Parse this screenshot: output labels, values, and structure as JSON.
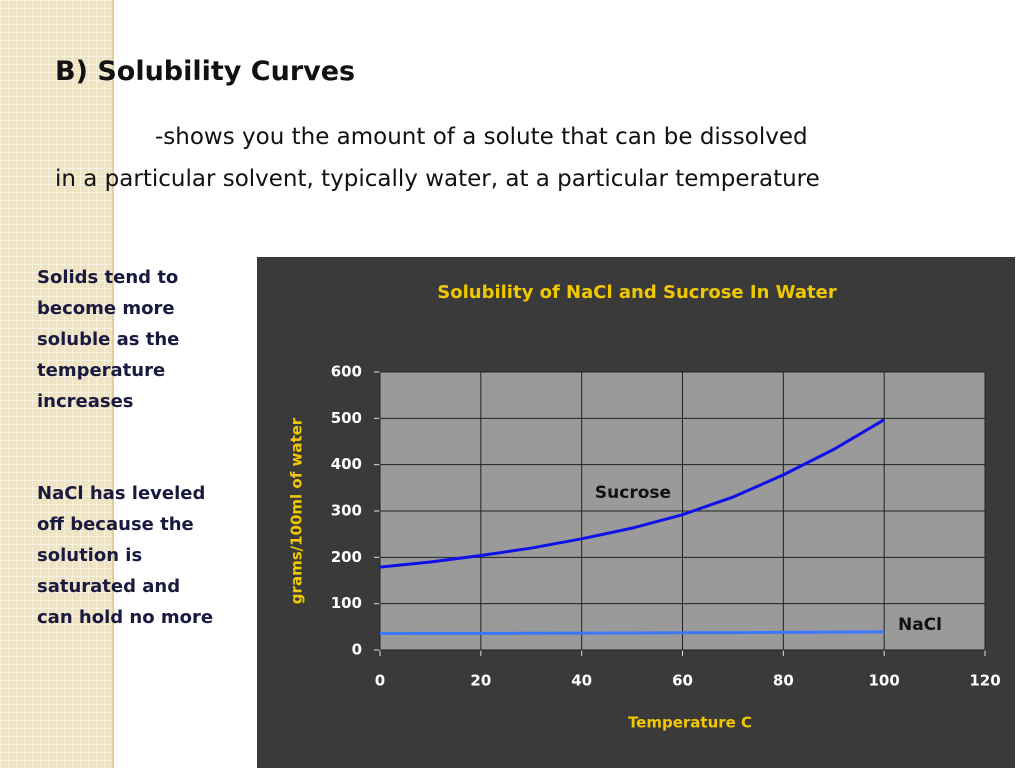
{
  "slide": {
    "title": "B) Solubility Curves",
    "body": [
      "-shows you the amount of a solute that can be dissolved",
      "in a particular solvent, typically water, at a particular temperature"
    ],
    "notes": [
      "Solids tend to become more soluble as the temperature increases",
      "NaCl has leveled off because the solution is saturated and can hold no more"
    ]
  },
  "chart_data": {
    "type": "line",
    "title": "Solubility of NaCl and Sucrose In Water",
    "x_label": "Temperature C",
    "y_label": "grams/100ml of water",
    "x": [
      0,
      10,
      20,
      30,
      40,
      50,
      60,
      70,
      80,
      90,
      100
    ],
    "series": [
      {
        "name": "Sucrose",
        "color": "#1010e8",
        "values": [
          179,
          190,
          204,
          220,
          240,
          263,
          292,
          330,
          378,
          433,
          497
        ]
      },
      {
        "name": "NaCl",
        "color": "#3c78ff",
        "values": [
          35.7,
          35.8,
          35.9,
          36.1,
          36.4,
          36.7,
          37.1,
          37.5,
          38,
          38.5,
          39.2
        ]
      }
    ],
    "xlim": [
      0,
      120
    ],
    "xticks": [
      0,
      20,
      40,
      60,
      80,
      100,
      120
    ],
    "ylim": [
      0,
      600
    ],
    "yticks": [
      0,
      100,
      200,
      300,
      400,
      500,
      600
    ],
    "grid": true
  }
}
